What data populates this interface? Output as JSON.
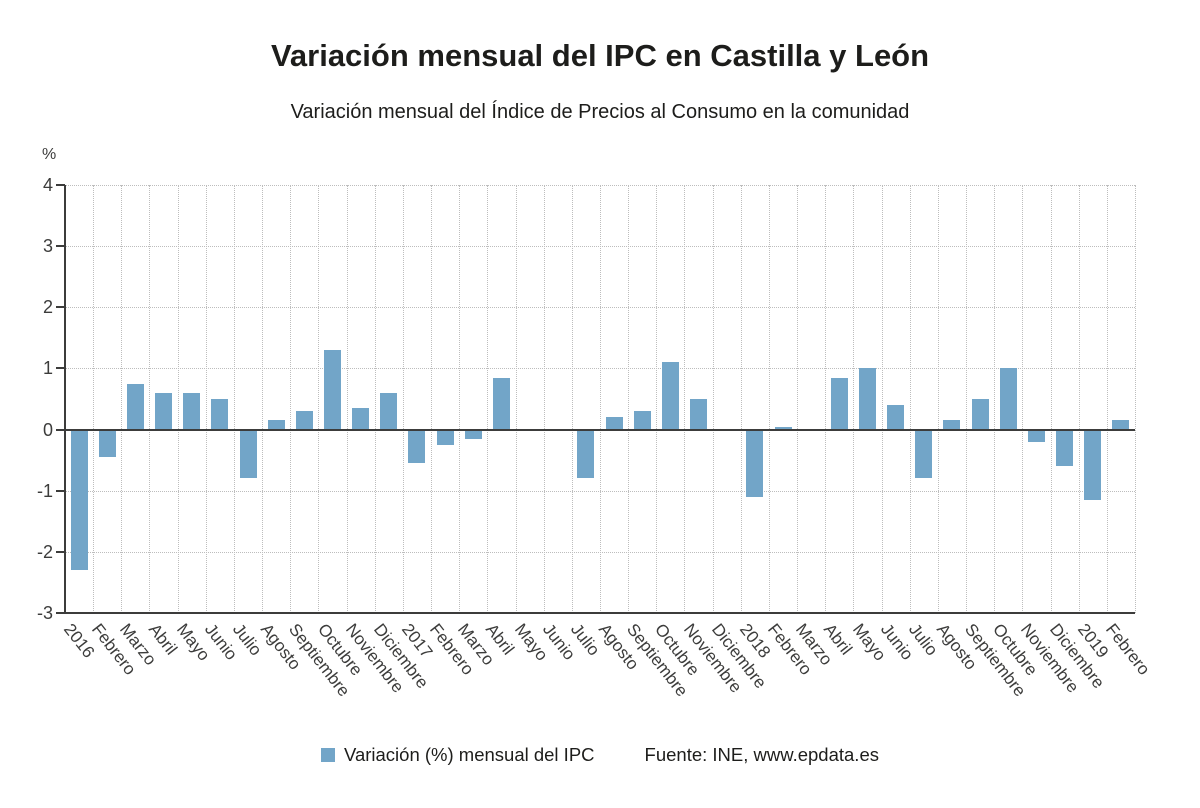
{
  "chart_data": {
    "type": "bar",
    "title": "Variación mensual del IPC en Castilla y León",
    "subtitle": "Variación mensual del Índice de Precios al Consumo en la comunidad",
    "ylabel": "%",
    "xlabel": "",
    "ylim": [
      -3,
      4
    ],
    "yticks": [
      4,
      3,
      2,
      1,
      0,
      -1,
      -2,
      -3
    ],
    "grid": "dotted, horizontal and vertical",
    "legend_position": "bottom",
    "legend_label": "Variación (%) mensual del IPC",
    "source": "Fuente: INE, www.epdata.es",
    "bar_color": "#72a5c8",
    "axis_color": "#3c3c3b",
    "categories": [
      "2016",
      "Febrero",
      "Marzo",
      "Abril",
      "Mayo",
      "Junio",
      "Julio",
      "Agosto",
      "Septiembre",
      "Octubre",
      "Noviembre",
      "Diciembre",
      "2017",
      "Febrero",
      "Marzo",
      "Abril",
      "Mayo",
      "Junio",
      "Julio",
      "Agosto",
      "Septiembre",
      "Octubre",
      "Noviembre",
      "Diciembre",
      "2018",
      "Febrero",
      "Marzo",
      "Abril",
      "Mayo",
      "Junio",
      "Julio",
      "Agosto",
      "Septiembre",
      "Octubre",
      "Noviembre",
      "Diciembre",
      "2019",
      "Febrero"
    ],
    "values": [
      -2.3,
      -0.45,
      0.75,
      0.6,
      0.6,
      0.5,
      -0.8,
      0.15,
      0.3,
      1.3,
      0.35,
      0.6,
      -0.55,
      -0.25,
      -0.15,
      0.85,
      0,
      0,
      -0.8,
      0.2,
      0.3,
      1.1,
      0.5,
      0,
      -1.1,
      0.05,
      0,
      0.85,
      1.0,
      0.4,
      -0.8,
      0.15,
      0.5,
      1.0,
      -0.2,
      -0.6,
      -1.15,
      0.15
    ]
  }
}
